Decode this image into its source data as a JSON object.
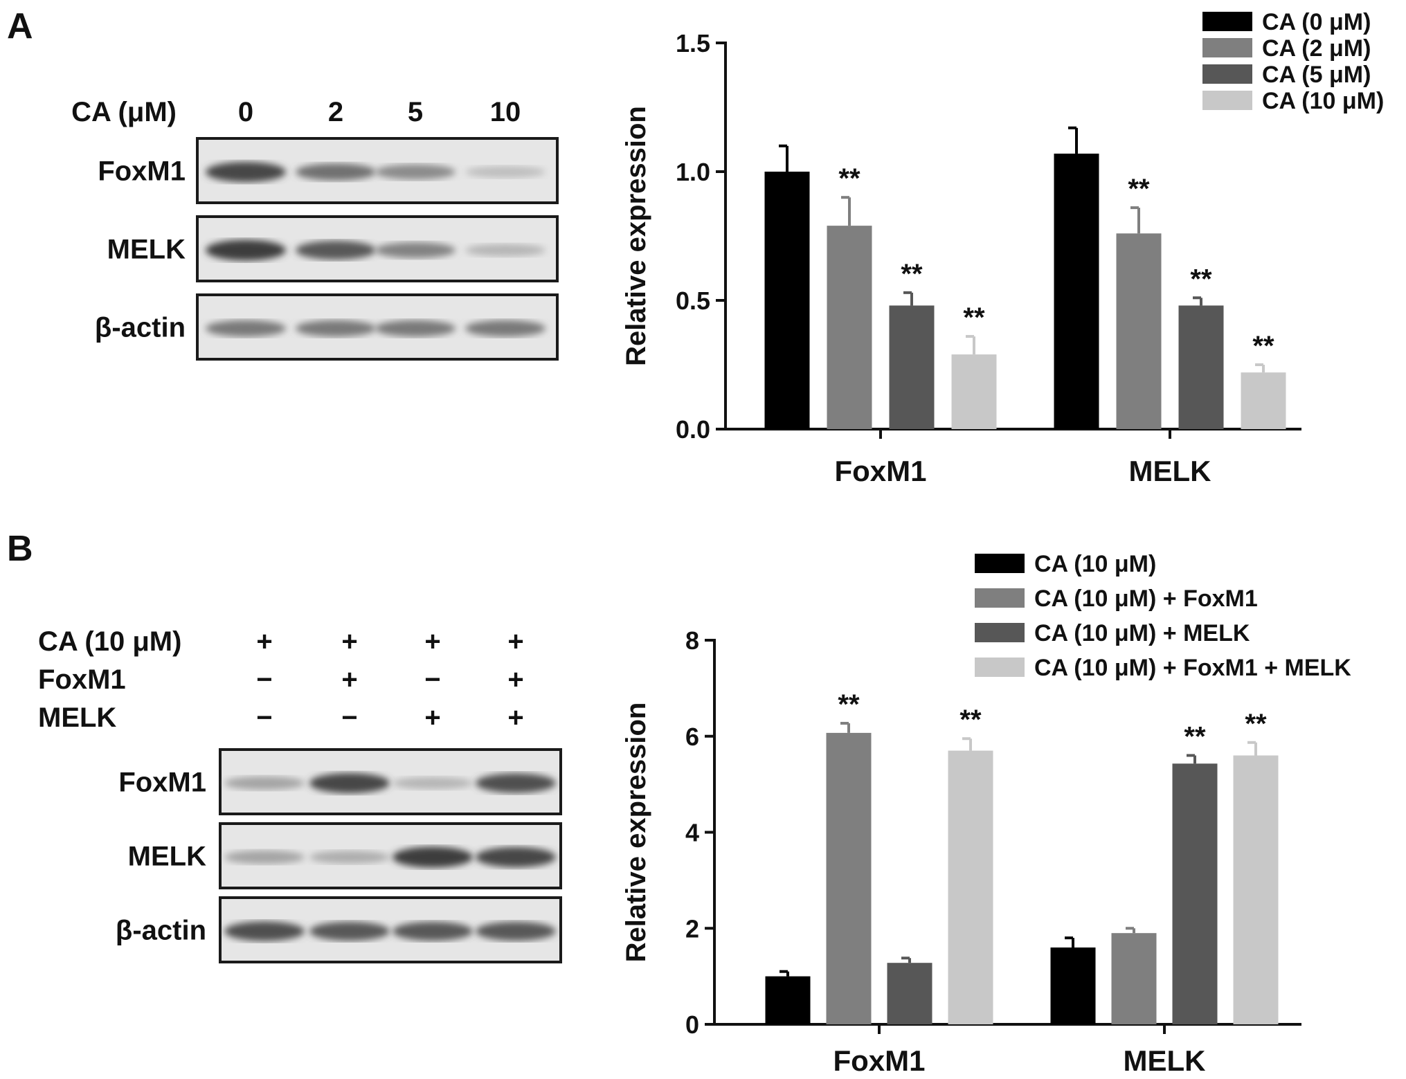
{
  "panel_a": {
    "letter": "A",
    "blot": {
      "header_label": "CA (μM)",
      "lanes": [
        "0",
        "2",
        "5",
        "10"
      ],
      "rows": [
        {
          "label": "FoxM1",
          "intensity": [
            0.85,
            0.6,
            0.45,
            0.15
          ]
        },
        {
          "label": "MELK",
          "intensity": [
            0.9,
            0.75,
            0.5,
            0.2
          ]
        },
        {
          "label": "β-actin",
          "intensity": [
            0.55,
            0.55,
            0.55,
            0.55
          ]
        }
      ]
    }
  },
  "panel_b": {
    "letter": "B",
    "blot": {
      "conditions": [
        {
          "label": "CA (10 μM)",
          "signs": [
            "+",
            "+",
            "+",
            "+"
          ]
        },
        {
          "label": "FoxM1",
          "signs": [
            "−",
            "+",
            "−",
            "+"
          ]
        },
        {
          "label": "MELK",
          "signs": [
            "−",
            "−",
            "+",
            "+"
          ]
        }
      ],
      "rows": [
        {
          "label": "FoxM1",
          "intensity": [
            0.3,
            0.85,
            0.2,
            0.8
          ]
        },
        {
          "label": "MELK",
          "intensity": [
            0.3,
            0.25,
            0.9,
            0.85
          ]
        },
        {
          "label": "β-actin",
          "intensity": [
            0.8,
            0.75,
            0.75,
            0.75
          ]
        }
      ]
    }
  },
  "chart_data": [
    {
      "type": "bar",
      "categories": [
        "FoxM1",
        "MELK"
      ],
      "ylabel": "Relative expression",
      "ylim": [
        0,
        1.5
      ],
      "yticks": [
        "0.0",
        "0.5",
        "1.0",
        "1.5"
      ],
      "legend_position": "top-right",
      "series": [
        {
          "name": "CA (0 μM)",
          "color": "#000000",
          "values": [
            1.0,
            1.07
          ],
          "errors": [
            0.1,
            0.1
          ],
          "significance": [
            "",
            ""
          ]
        },
        {
          "name": "CA (2 μM)",
          "color": "#7f7f7f",
          "values": [
            0.79,
            0.76
          ],
          "errors": [
            0.11,
            0.1
          ],
          "significance": [
            "**",
            "**"
          ]
        },
        {
          "name": "CA (5 μM)",
          "color": "#575757",
          "values": [
            0.48,
            0.48
          ],
          "errors": [
            0.05,
            0.03
          ],
          "significance": [
            "**",
            "**"
          ]
        },
        {
          "name": "CA (10 μM)",
          "color": "#c8c8c8",
          "values": [
            0.29,
            0.22
          ],
          "errors": [
            0.07,
            0.03
          ],
          "significance": [
            "**",
            "**"
          ]
        }
      ]
    },
    {
      "type": "bar",
      "categories": [
        "FoxM1",
        "MELK"
      ],
      "ylabel": "Relative expression",
      "ylim": [
        0,
        8
      ],
      "yticks": [
        "0",
        "2",
        "4",
        "6",
        "8"
      ],
      "legend_position": "top-right",
      "series": [
        {
          "name": "CA (10 μM)",
          "color": "#000000",
          "values": [
            1.0,
            1.6
          ],
          "errors": [
            0.1,
            0.2
          ],
          "significance": [
            "",
            ""
          ]
        },
        {
          "name": "CA (10 μM) + FoxM1",
          "color": "#7f7f7f",
          "values": [
            6.07,
            1.9
          ],
          "errors": [
            0.2,
            0.1
          ],
          "significance": [
            "**",
            ""
          ]
        },
        {
          "name": "CA (10 μM) + MELK",
          "color": "#575757",
          "values": [
            1.28,
            5.43
          ],
          "errors": [
            0.1,
            0.17
          ],
          "significance": [
            "",
            "**"
          ]
        },
        {
          "name": "CA (10 μM) + FoxM1 + MELK",
          "color": "#c8c8c8",
          "values": [
            5.7,
            5.6
          ],
          "errors": [
            0.25,
            0.27
          ],
          "significance": [
            "**",
            "**"
          ]
        }
      ]
    }
  ]
}
